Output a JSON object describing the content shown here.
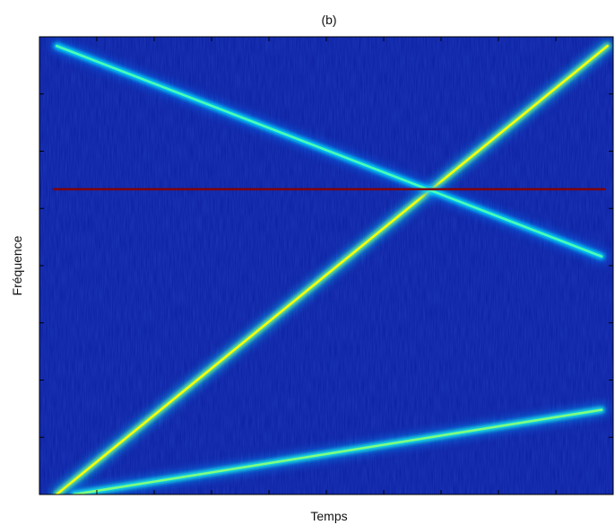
{
  "chart_data": {
    "type": "heatmap",
    "title": "(b)",
    "xlabel": "Temps",
    "ylabel": "Fréquence",
    "xlim": [
      0,
      1
    ],
    "ylim": [
      0,
      1
    ],
    "ticks_labeled": false,
    "colormap": "jet",
    "background_color": "#0a1fa0",
    "series": [
      {
        "kind": "chirp-rising",
        "x": [
          0.03,
          0.99
        ],
        "y": [
          0.0,
          0.98
        ],
        "intensity": 0.62
      },
      {
        "kind": "chirp-falling",
        "x": [
          0.03,
          0.98
        ],
        "y": [
          0.98,
          0.52
        ],
        "intensity": 0.45
      },
      {
        "kind": "constant-tone",
        "x": [
          0.025,
          0.985
        ],
        "y": [
          0.667,
          0.667
        ],
        "intensity": 1.0
      },
      {
        "kind": "chirp-slow-rising",
        "x": [
          0.06,
          0.98
        ],
        "y": [
          0.0,
          0.185
        ],
        "intensity": 0.5
      }
    ]
  }
}
